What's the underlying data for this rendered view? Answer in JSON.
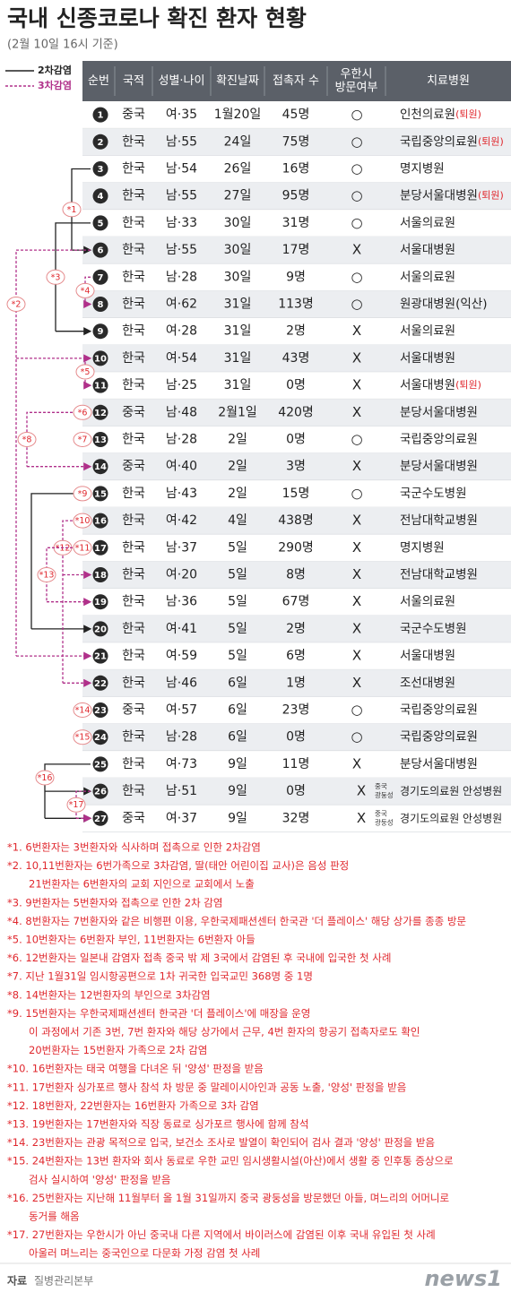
{
  "title": "국내 신종코로나 확진 환자 현황",
  "subtitle": "(2월 10일 16시 기준)",
  "legend": [
    {
      "label": "2차감염",
      "style": "solid",
      "color": "#222222"
    },
    {
      "label": "3차감염",
      "style": "dashed",
      "color": "#b0308a"
    }
  ],
  "table": {
    "header": [
      [
        "순번"
      ],
      [
        "국적"
      ],
      [
        "성별·나이"
      ],
      [
        "확진날짜"
      ],
      [
        "접촉자 수"
      ],
      [
        "우한시",
        "방문여부"
      ],
      [
        "치료병원"
      ]
    ],
    "rows": [
      {
        "no": 1,
        "nationality": "중국",
        "sex_age": "여·35",
        "date": "1월20일",
        "contacts": "45명",
        "wuhan": "○",
        "hospital": "인천의료원",
        "hospital_note": "(퇴원)"
      },
      {
        "no": 2,
        "nationality": "한국",
        "sex_age": "남·55",
        "date": "24일",
        "contacts": "75명",
        "wuhan": "○",
        "hospital": "국립중앙의료원",
        "hospital_note": "(퇴원)"
      },
      {
        "no": 3,
        "nationality": "한국",
        "sex_age": "남·54",
        "date": "26일",
        "contacts": "16명",
        "wuhan": "○",
        "hospital": "명지병원"
      },
      {
        "no": 4,
        "nationality": "한국",
        "sex_age": "남·55",
        "date": "27일",
        "contacts": "95명",
        "wuhan": "○",
        "hospital": "분당서울대병원",
        "hospital_note": "(퇴원)"
      },
      {
        "no": 5,
        "nationality": "한국",
        "sex_age": "남·33",
        "date": "30일",
        "contacts": "31명",
        "wuhan": "○",
        "hospital": "서울의료원"
      },
      {
        "no": 6,
        "nationality": "한국",
        "sex_age": "남·55",
        "date": "30일",
        "contacts": "17명",
        "wuhan": "X",
        "hospital": "서울대병원"
      },
      {
        "no": 7,
        "nationality": "한국",
        "sex_age": "남·28",
        "date": "30일",
        "contacts": "9명",
        "wuhan": "○",
        "hospital": "서울의료원"
      },
      {
        "no": 8,
        "nationality": "한국",
        "sex_age": "여·62",
        "date": "31일",
        "contacts": "113명",
        "wuhan": "○",
        "hospital": "원광대병원(익산)"
      },
      {
        "no": 9,
        "nationality": "한국",
        "sex_age": "여·28",
        "date": "31일",
        "contacts": "2명",
        "wuhan": "X",
        "hospital": "서울의료원"
      },
      {
        "no": 10,
        "nationality": "한국",
        "sex_age": "여·54",
        "date": "31일",
        "contacts": "43명",
        "wuhan": "X",
        "hospital": "서울대병원"
      },
      {
        "no": 11,
        "nationality": "한국",
        "sex_age": "남·25",
        "date": "31일",
        "contacts": "0명",
        "wuhan": "X",
        "hospital": "서울대병원",
        "hospital_note": "(퇴원)"
      },
      {
        "no": 12,
        "nationality": "중국",
        "sex_age": "남·48",
        "date": "2월1일",
        "contacts": "420명",
        "wuhan": "X",
        "hospital": "분당서울대병원"
      },
      {
        "no": 13,
        "nationality": "한국",
        "sex_age": "남·28",
        "date": "2일",
        "contacts": "0명",
        "wuhan": "○",
        "hospital": "국립중앙의료원"
      },
      {
        "no": 14,
        "nationality": "중국",
        "sex_age": "여·40",
        "date": "2일",
        "contacts": "3명",
        "wuhan": "X",
        "hospital": "분당서울대병원"
      },
      {
        "no": 15,
        "nationality": "한국",
        "sex_age": "남·43",
        "date": "2일",
        "contacts": "15명",
        "wuhan": "○",
        "hospital": "국군수도병원"
      },
      {
        "no": 16,
        "nationality": "한국",
        "sex_age": "여·42",
        "date": "4일",
        "contacts": "438명",
        "wuhan": "X",
        "hospital": "전남대학교병원"
      },
      {
        "no": 17,
        "nationality": "한국",
        "sex_age": "남·37",
        "date": "5일",
        "contacts": "290명",
        "wuhan": "X",
        "hospital": "명지병원"
      },
      {
        "no": 18,
        "nationality": "한국",
        "sex_age": "여·20",
        "date": "5일",
        "contacts": "8명",
        "wuhan": "X",
        "hospital": "전남대학교병원"
      },
      {
        "no": 19,
        "nationality": "한국",
        "sex_age": "남·36",
        "date": "5일",
        "contacts": "67명",
        "wuhan": "X",
        "hospital": "서울의료원"
      },
      {
        "no": 20,
        "nationality": "한국",
        "sex_age": "여·41",
        "date": "5일",
        "contacts": "2명",
        "wuhan": "X",
        "hospital": "국군수도병원"
      },
      {
        "no": 21,
        "nationality": "한국",
        "sex_age": "여·59",
        "date": "5일",
        "contacts": "6명",
        "wuhan": "X",
        "hospital": "서울대병원"
      },
      {
        "no": 22,
        "nationality": "한국",
        "sex_age": "남·46",
        "date": "6일",
        "contacts": "1명",
        "wuhan": "X",
        "hospital": "조선대병원"
      },
      {
        "no": 23,
        "nationality": "중국",
        "sex_age": "여·57",
        "date": "6일",
        "contacts": "23명",
        "wuhan": "○",
        "hospital": "국립중앙의료원"
      },
      {
        "no": 24,
        "nationality": "한국",
        "sex_age": "남·28",
        "date": "6일",
        "contacts": "0명",
        "wuhan": "○",
        "hospital": "국립중앙의료원"
      },
      {
        "no": 25,
        "nationality": "한국",
        "sex_age": "여·73",
        "date": "9일",
        "contacts": "11명",
        "wuhan": "X",
        "hospital": "분당서울대병원"
      },
      {
        "no": 26,
        "nationality": "한국",
        "sex_age": "남·51",
        "date": "9일",
        "contacts": "0명",
        "wuhan": "X",
        "wuhan_note": [
          "중국",
          "광둥성"
        ],
        "hospital": "경기도의료원 안성병원"
      },
      {
        "no": 27,
        "nationality": "중국",
        "sex_age": "여·37",
        "date": "9일",
        "contacts": "32명",
        "wuhan": "X",
        "wuhan_note": [
          "중국",
          "광둥성"
        ],
        "hospital": "경기도의료원 안성병원"
      }
    ]
  },
  "links": [
    {
      "label": "*1",
      "style": "solid",
      "from": 3,
      "to": [
        6
      ]
    },
    {
      "label": "*3",
      "style": "solid",
      "from": 5,
      "to": [
        9
      ]
    },
    {
      "label": "*4",
      "style": "dashed",
      "from": 7,
      "to": [
        8
      ]
    },
    {
      "label": "*2",
      "style": "dashed",
      "from": 6,
      "to": [
        10,
        21
      ]
    },
    {
      "label": "*5",
      "style": "dashed",
      "from": 10,
      "to": [
        11
      ]
    },
    {
      "label": "*8",
      "style": "dashed",
      "from": 12,
      "to": [
        14
      ]
    },
    {
      "style": "solid",
      "from": 15,
      "to": [
        20
      ]
    },
    {
      "label": "*12",
      "style": "dashed",
      "from": 16,
      "to": [
        18,
        22
      ]
    },
    {
      "label": "*13",
      "style": "dashed",
      "from": 17,
      "to": [
        19
      ]
    },
    {
      "label": "*16",
      "style": "solid",
      "from": 25,
      "to": [
        26,
        27
      ]
    },
    {
      "label": "*17",
      "style": "dashed",
      "from": 26,
      "to": [
        27
      ]
    }
  ],
  "tags": [
    {
      "label": "*6",
      "row": 12
    },
    {
      "label": "*7",
      "row": 13
    },
    {
      "label": "*9",
      "row": 15
    },
    {
      "label": "*10",
      "row": 16
    },
    {
      "label": "*11",
      "row": 17
    },
    {
      "label": "*14",
      "row": 23
    },
    {
      "label": "*15",
      "row": 24
    }
  ],
  "notes": [
    [
      "*1. 6번환자는 3번환자와 식사하며 접촉으로 인한 2차감염"
    ],
    [
      "*2. 10,11번환자는 6번가족으로 3차감염, 딸(태안 어린이집 교사)은 음성 판정",
      "21번환자는 6번환자의 교회 지인으로 교회에서 노출"
    ],
    [
      "*3. 9번환자는 5번환자와 접촉으로 인한 2차 감염"
    ],
    [
      "*4. 8번환자는 7번환자와 같은 비행편 이용, 우한국제패션센터 한국관 '더 플레이스' 해당 상가를 종종 방문"
    ],
    [
      "*5. 10번환자는 6번환자 부인, 11번환자는 6번환자 아들"
    ],
    [
      "*6. 12번환자는 일본내 감염자 접촉 중국 밖 제 3국에서 감염된 후 국내에 입국한 첫 사례"
    ],
    [
      "*7. 지난 1월31일 임시항공편으로 1차 귀국한 입국교민 368명 중 1명"
    ],
    [
      "*8. 14번환자는 12번환자의 부인으로 3차감염"
    ],
    [
      "*9. 15번환자는 우한국제패션센터 한국관 '더 플레이스'에 매장을 운영",
      "이 과정에서 기존 3번, 7번 환자와 해당 상가에서 근무, 4번 환자의 항공기 접촉자로도 확인",
      "20번환자는 15번환자 가족으로 2차 감염"
    ],
    [
      "*10. 16번환자는 태국 여행을 다녀온 뒤 '양성' 판정을 받음"
    ],
    [
      "*11. 17번환자 싱가포르 행사 참석 차 방문 중 말레이시아인과 공동 노출, '양성' 판정을 받음"
    ],
    [
      "*12. 18번환자, 22번환자는 16번환자 가족으로 3차 감염"
    ],
    [
      "*13. 19번환자는 17번환자와 직장 동료로 싱가포르 행사에 함께 참석"
    ],
    [
      "*14. 23번환자는 관광 목적으로 입국, 보건소 조사로 발열이 확인되어 검사 결과 '양성' 판정을 받음"
    ],
    [
      "*15. 24번환자는 13번 환자와 회사 동료로 우한 교민 임시생활시설(아산)에서 생활 중 인후통 증상으로",
      "검사 실시하여 '양성' 판정을 받음"
    ],
    [
      "*16. 25번환자는 지난해 11월부터 올 1월 31일까지 중국 광둥성을 방문했던 아들, 며느리의 어머니로",
      "동거를 해옴"
    ],
    [
      "*17. 27번환자는 우한시가 아닌 중국내 다른 지역에서 바이러스에 감염된 이후 국내 유입된 첫 사례",
      "아울러 며느리는 중국인으로 다문화 가정 감염 첫 사례"
    ]
  ],
  "footer": {
    "source_label": "자료",
    "source": "질병관리본부",
    "logo": "news1"
  }
}
